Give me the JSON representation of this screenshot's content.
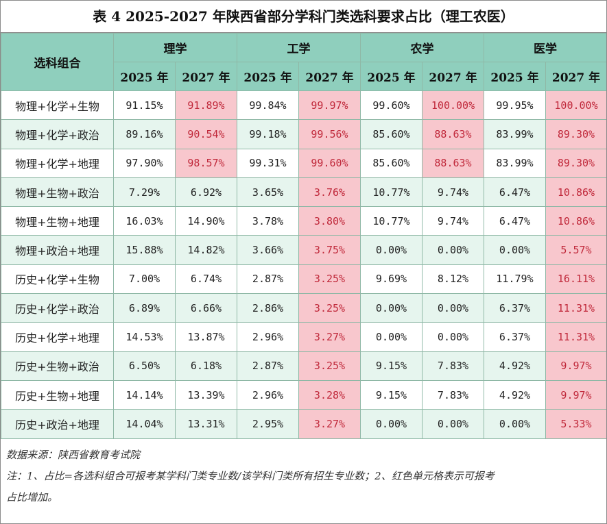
{
  "title": "表 4  2025-2027 年陕西省部分学科门类选科要求占比（理工农医）",
  "header": {
    "combo_label": "选科组合",
    "subjects": [
      "理学",
      "工学",
      "农学",
      "医学"
    ],
    "years": [
      "2025 年",
      "2027 年",
      "2025 年",
      "2027 年",
      "2025 年",
      "2027 年",
      "2025 年",
      "2027 年"
    ]
  },
  "rows": [
    {
      "combo": "物理+化学+生物",
      "cells": [
        {
          "v": "91.15%",
          "hl": false
        },
        {
          "v": "91.89%",
          "hl": true
        },
        {
          "v": "99.84%",
          "hl": false
        },
        {
          "v": "99.97%",
          "hl": true
        },
        {
          "v": "99.60%",
          "hl": false
        },
        {
          "v": "100.00%",
          "hl": true
        },
        {
          "v": "99.95%",
          "hl": false
        },
        {
          "v": "100.00%",
          "hl": true
        }
      ]
    },
    {
      "combo": "物理+化学+政治",
      "cells": [
        {
          "v": "89.16%",
          "hl": false
        },
        {
          "v": "90.54%",
          "hl": true
        },
        {
          "v": "99.18%",
          "hl": false
        },
        {
          "v": "99.56%",
          "hl": true
        },
        {
          "v": "85.60%",
          "hl": false
        },
        {
          "v": "88.63%",
          "hl": true
        },
        {
          "v": "83.99%",
          "hl": false
        },
        {
          "v": "89.30%",
          "hl": true
        }
      ]
    },
    {
      "combo": "物理+化学+地理",
      "cells": [
        {
          "v": "97.90%",
          "hl": false
        },
        {
          "v": "98.57%",
          "hl": true
        },
        {
          "v": "99.31%",
          "hl": false
        },
        {
          "v": "99.60%",
          "hl": true
        },
        {
          "v": "85.60%",
          "hl": false
        },
        {
          "v": "88.63%",
          "hl": true
        },
        {
          "v": "83.99%",
          "hl": false
        },
        {
          "v": "89.30%",
          "hl": true
        }
      ]
    },
    {
      "combo": "物理+生物+政治",
      "cells": [
        {
          "v": "7.29%",
          "hl": false
        },
        {
          "v": "6.92%",
          "hl": false
        },
        {
          "v": "3.65%",
          "hl": false
        },
        {
          "v": "3.76%",
          "hl": true
        },
        {
          "v": "10.77%",
          "hl": false
        },
        {
          "v": "9.74%",
          "hl": false
        },
        {
          "v": "6.47%",
          "hl": false
        },
        {
          "v": "10.86%",
          "hl": true
        }
      ]
    },
    {
      "combo": "物理+生物+地理",
      "cells": [
        {
          "v": "16.03%",
          "hl": false
        },
        {
          "v": "14.90%",
          "hl": false
        },
        {
          "v": "3.78%",
          "hl": false
        },
        {
          "v": "3.80%",
          "hl": true
        },
        {
          "v": "10.77%",
          "hl": false
        },
        {
          "v": "9.74%",
          "hl": false
        },
        {
          "v": "6.47%",
          "hl": false
        },
        {
          "v": "10.86%",
          "hl": true
        }
      ]
    },
    {
      "combo": "物理+政治+地理",
      "cells": [
        {
          "v": "15.88%",
          "hl": false
        },
        {
          "v": "14.82%",
          "hl": false
        },
        {
          "v": "3.66%",
          "hl": false
        },
        {
          "v": "3.75%",
          "hl": true
        },
        {
          "v": "0.00%",
          "hl": false
        },
        {
          "v": "0.00%",
          "hl": false
        },
        {
          "v": "0.00%",
          "hl": false
        },
        {
          "v": "5.57%",
          "hl": true
        }
      ]
    },
    {
      "combo": "历史+化学+生物",
      "cells": [
        {
          "v": "7.00%",
          "hl": false
        },
        {
          "v": "6.74%",
          "hl": false
        },
        {
          "v": "2.87%",
          "hl": false
        },
        {
          "v": "3.25%",
          "hl": true
        },
        {
          "v": "9.69%",
          "hl": false
        },
        {
          "v": "8.12%",
          "hl": false
        },
        {
          "v": "11.79%",
          "hl": false
        },
        {
          "v": "16.11%",
          "hl": true
        }
      ]
    },
    {
      "combo": "历史+化学+政治",
      "cells": [
        {
          "v": "6.89%",
          "hl": false
        },
        {
          "v": "6.66%",
          "hl": false
        },
        {
          "v": "2.86%",
          "hl": false
        },
        {
          "v": "3.25%",
          "hl": true
        },
        {
          "v": "0.00%",
          "hl": false
        },
        {
          "v": "0.00%",
          "hl": false
        },
        {
          "v": "6.37%",
          "hl": false
        },
        {
          "v": "11.31%",
          "hl": true
        }
      ]
    },
    {
      "combo": "历史+化学+地理",
      "cells": [
        {
          "v": "14.53%",
          "hl": false
        },
        {
          "v": "13.87%",
          "hl": false
        },
        {
          "v": "2.96%",
          "hl": false
        },
        {
          "v": "3.27%",
          "hl": true
        },
        {
          "v": "0.00%",
          "hl": false
        },
        {
          "v": "0.00%",
          "hl": false
        },
        {
          "v": "6.37%",
          "hl": false
        },
        {
          "v": "11.31%",
          "hl": true
        }
      ]
    },
    {
      "combo": "历史+生物+政治",
      "cells": [
        {
          "v": "6.50%",
          "hl": false
        },
        {
          "v": "6.18%",
          "hl": false
        },
        {
          "v": "2.87%",
          "hl": false
        },
        {
          "v": "3.25%",
          "hl": true
        },
        {
          "v": "9.15%",
          "hl": false
        },
        {
          "v": "7.83%",
          "hl": false
        },
        {
          "v": "4.92%",
          "hl": false
        },
        {
          "v": "9.97%",
          "hl": true
        }
      ]
    },
    {
      "combo": "历史+生物+地理",
      "cells": [
        {
          "v": "14.14%",
          "hl": false
        },
        {
          "v": "13.39%",
          "hl": false
        },
        {
          "v": "2.96%",
          "hl": false
        },
        {
          "v": "3.28%",
          "hl": true
        },
        {
          "v": "9.15%",
          "hl": false
        },
        {
          "v": "7.83%",
          "hl": false
        },
        {
          "v": "4.92%",
          "hl": false
        },
        {
          "v": "9.97%",
          "hl": true
        }
      ]
    },
    {
      "combo": "历史+政治+地理",
      "cells": [
        {
          "v": "14.04%",
          "hl": false
        },
        {
          "v": "13.31%",
          "hl": false
        },
        {
          "v": "2.95%",
          "hl": false
        },
        {
          "v": "3.27%",
          "hl": true
        },
        {
          "v": "0.00%",
          "hl": false
        },
        {
          "v": "0.00%",
          "hl": false
        },
        {
          "v": "0.00%",
          "hl": false
        },
        {
          "v": "5.33%",
          "hl": true
        }
      ]
    }
  ],
  "notes": {
    "source": "数据来源：陕西省教育考试院",
    "note_line1": "注：1、占比=各选科组合可报考某学科门类专业数/该学科门类所有招生专业数；2、红色单元格表示可报考",
    "note_line2": "占比增加。"
  },
  "colors": {
    "header_bg": "#8fcfbd",
    "band_bg": "#e6f5ee",
    "highlight_bg": "#f8c7cd"
  }
}
